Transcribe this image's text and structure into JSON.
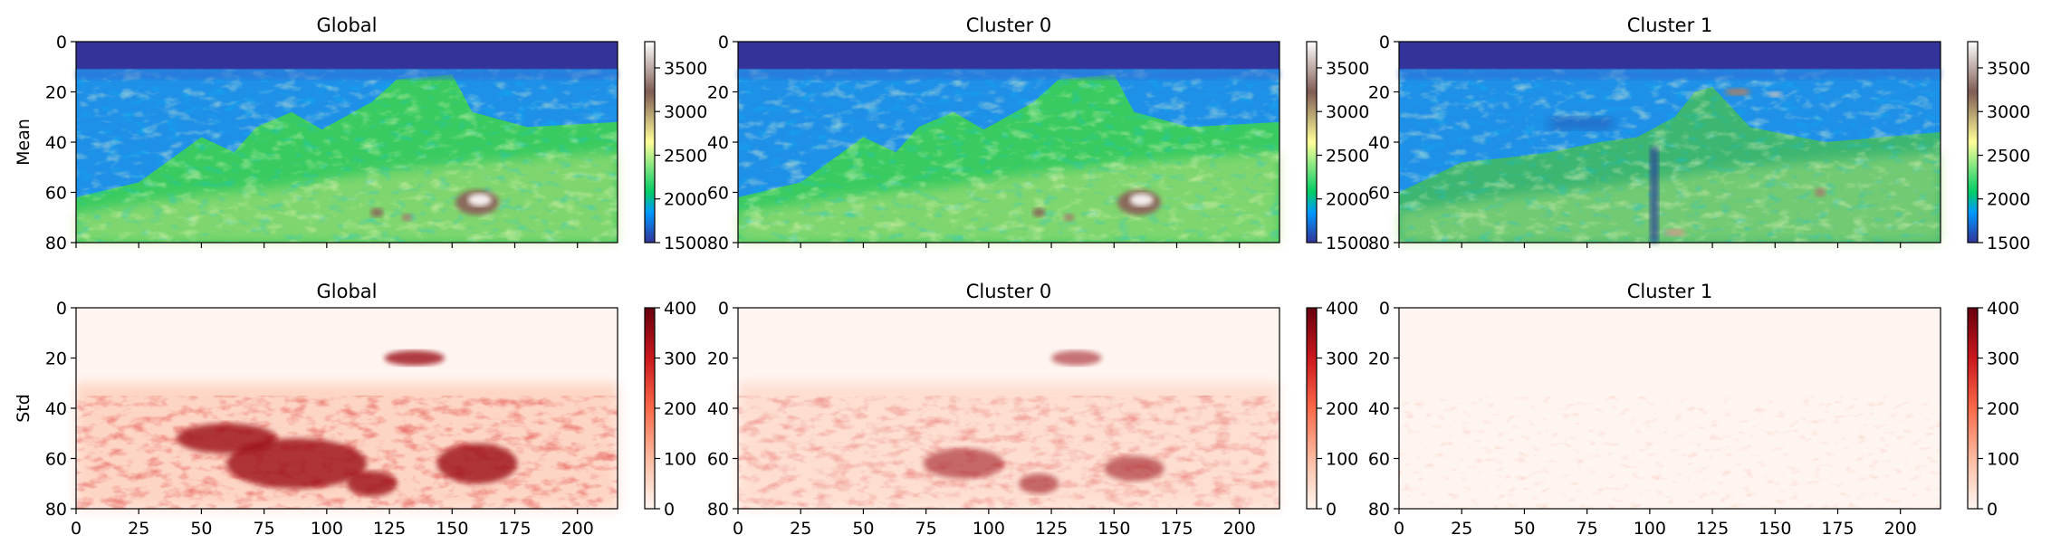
{
  "chart_data": [
    {
      "type": "heatmap",
      "title": "Global",
      "ylabel": "Mean",
      "colormap": "terrain",
      "xlim": [
        0,
        216
      ],
      "ylim": [
        80,
        0
      ],
      "zlim": [
        1500,
        3800
      ],
      "xticks": [
        "0",
        "25",
        "50",
        "75",
        "100",
        "125",
        "150",
        "175",
        "200"
      ],
      "show_xticklabels": false,
      "yticks": [
        "0",
        "20",
        "40",
        "60",
        "80"
      ],
      "colorbar_ticks": [
        "1500",
        "2000",
        "2500",
        "3000",
        "3500"
      ]
    },
    {
      "type": "heatmap",
      "title": "Cluster 0",
      "ylabel": "",
      "colormap": "terrain",
      "xlim": [
        0,
        216
      ],
      "ylim": [
        80,
        0
      ],
      "zlim": [
        1500,
        3800
      ],
      "xticks": [
        "0",
        "25",
        "50",
        "75",
        "100",
        "125",
        "150",
        "175",
        "200"
      ],
      "show_xticklabels": false,
      "yticks": [
        "0",
        "20",
        "40",
        "60",
        "80"
      ],
      "colorbar_ticks": [
        "1500",
        "2000",
        "2500",
        "3000",
        "3500"
      ]
    },
    {
      "type": "heatmap",
      "title": "Cluster 1",
      "ylabel": "",
      "colormap": "terrain",
      "xlim": [
        0,
        216
      ],
      "ylim": [
        80,
        0
      ],
      "zlim": [
        1500,
        3800
      ],
      "xticks": [
        "0",
        "25",
        "50",
        "75",
        "100",
        "125",
        "150",
        "175",
        "200"
      ],
      "show_xticklabels": false,
      "yticks": [
        "0",
        "20",
        "40",
        "60",
        "80"
      ],
      "colorbar_ticks": [
        "1500",
        "2000",
        "2500",
        "3000",
        "3500"
      ]
    },
    {
      "type": "heatmap",
      "title": "Global",
      "ylabel": "Std",
      "colormap": "Reds",
      "xlim": [
        0,
        216
      ],
      "ylim": [
        80,
        0
      ],
      "zlim": [
        0,
        400
      ],
      "xticks": [
        "0",
        "25",
        "50",
        "75",
        "100",
        "125",
        "150",
        "175",
        "200"
      ],
      "show_xticklabels": true,
      "yticks": [
        "0",
        "20",
        "40",
        "60",
        "80"
      ],
      "colorbar_ticks": [
        "0",
        "100",
        "200",
        "300",
        "400"
      ]
    },
    {
      "type": "heatmap",
      "title": "Cluster 0",
      "ylabel": "",
      "colormap": "Reds",
      "xlim": [
        0,
        216
      ],
      "ylim": [
        80,
        0
      ],
      "zlim": [
        0,
        400
      ],
      "xticks": [
        "0",
        "25",
        "50",
        "75",
        "100",
        "125",
        "150",
        "175",
        "200"
      ],
      "show_xticklabels": true,
      "yticks": [
        "0",
        "20",
        "40",
        "60",
        "80"
      ],
      "colorbar_ticks": [
        "0",
        "100",
        "200",
        "300",
        "400"
      ]
    },
    {
      "type": "heatmap",
      "title": "Cluster 1",
      "ylabel": "",
      "colormap": "Reds",
      "xlim": [
        0,
        216
      ],
      "ylim": [
        80,
        0
      ],
      "zlim": [
        0,
        400
      ],
      "xticks": [
        "0",
        "25",
        "50",
        "75",
        "100",
        "125",
        "150",
        "175",
        "200"
      ],
      "show_xticklabels": true,
      "yticks": [
        "0",
        "20",
        "40",
        "60",
        "80"
      ],
      "colorbar_ticks": [
        "0",
        "100",
        "200",
        "300",
        "400"
      ]
    }
  ]
}
